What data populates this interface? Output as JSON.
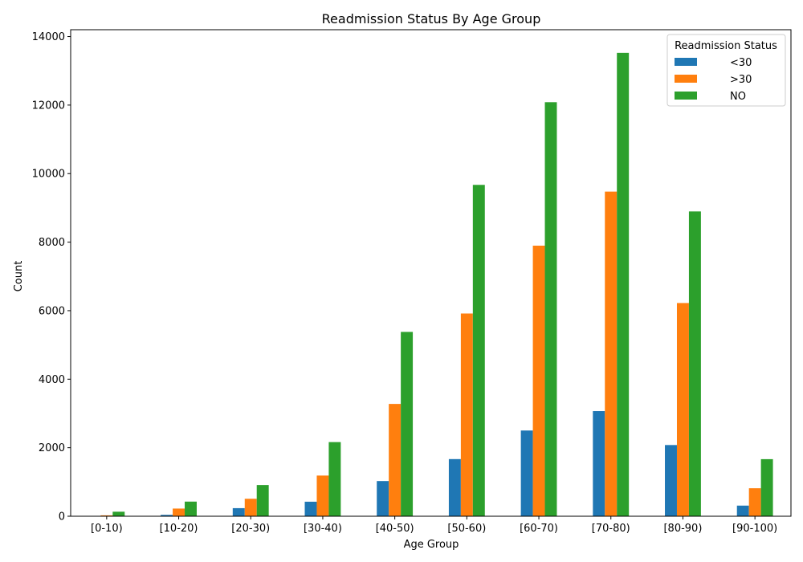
{
  "chart_data": {
    "type": "bar",
    "title": "Readmission Status By Age Group",
    "xlabel": "Age Group",
    "ylabel": "Count",
    "ylim": [
      0,
      14200
    ],
    "yticks": [
      0,
      2000,
      4000,
      6000,
      8000,
      10000,
      12000,
      14000
    ],
    "categories": [
      "[0-10)",
      "[10-20)",
      "[20-30)",
      "[30-40)",
      "[40-50)",
      "[50-60)",
      "[60-70)",
      "[70-80)",
      "[80-90)",
      "[90-100)"
    ],
    "legend": {
      "title": "Readmission Status",
      "placement": "top-right"
    },
    "grid": false,
    "series": [
      {
        "name": "<30",
        "color": "#1f77b4",
        "values": [
          3,
          40,
          236,
          424,
          1027,
          1668,
          2502,
          3069,
          2078,
          310
        ]
      },
      {
        "name": ">30",
        "color": "#ff7f0e",
        "values": [
          26,
          224,
          510,
          1187,
          3278,
          5917,
          7897,
          9475,
          6223,
          817
        ]
      },
      {
        "name": "NO",
        "color": "#2ca02c",
        "values": [
          132,
          427,
          911,
          2164,
          5380,
          9671,
          12084,
          13524,
          8896,
          1666
        ]
      }
    ]
  }
}
